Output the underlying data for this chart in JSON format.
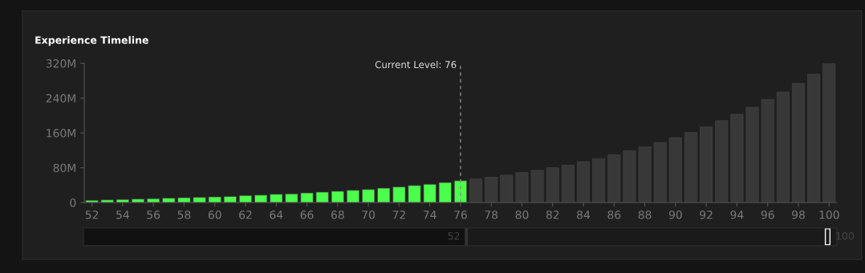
{
  "chart_data": {
    "type": "bar",
    "title": "Experience Timeline",
    "categories": [
      "52",
      null,
      "54",
      null,
      "56",
      null,
      "58",
      null,
      "60",
      null,
      "62",
      null,
      "64",
      null,
      "66",
      null,
      "68",
      null,
      "70",
      null,
      "72",
      null,
      "74",
      null,
      "76",
      null,
      "78",
      null,
      "80",
      null,
      "82",
      null,
      "84",
      null,
      "86",
      null,
      "88",
      null,
      "90",
      null,
      "92",
      null,
      "94",
      null,
      "96",
      null,
      "98",
      null,
      "100"
    ],
    "values": [
      5,
      6,
      7,
      8,
      9,
      10,
      11,
      12,
      13,
      14,
      16,
      17,
      19,
      20,
      22,
      24,
      26,
      28,
      30,
      33,
      36,
      39,
      42,
      46,
      50,
      54,
      58,
      63,
      69,
      74,
      80,
      86,
      94,
      101,
      110,
      119,
      128,
      138,
      149,
      161,
      174,
      188,
      203,
      219,
      237,
      254,
      274,
      295,
      319
    ],
    "colors": [
      "#4cff4c",
      "#4cff4c",
      "#4cff4c",
      "#4cff4c",
      "#4cff4c",
      "#4cff4c",
      "#4cff4c",
      "#4cff4c",
      "#4cff4c",
      "#4cff4c",
      "#4cff4c",
      "#4cff4c",
      "#4cff4c",
      "#4cff4c",
      "#4cff4c",
      "#4cff4c",
      "#4cff4c",
      "#4cff4c",
      "#4cff4c",
      "#4cff4c",
      "#4cff4c",
      "#4cff4c",
      "#4cff4c",
      "#4cff4c",
      "#4cff4c",
      "#383838",
      "#383838",
      "#383838",
      "#383838",
      "#383838",
      "#383838",
      "#383838",
      "#383838",
      "#383838",
      "#383838",
      "#383838",
      "#383838",
      "#383838",
      "#383838",
      "#383838",
      "#383838",
      "#383838",
      "#383838",
      "#383838",
      "#383838",
      "#383838",
      "#383838",
      "#383838",
      "#383838"
    ],
    "ylim": [
      0,
      320
    ],
    "yticks": [
      {
        "value": 0,
        "label": "0"
      },
      {
        "value": 80,
        "label": "80M"
      },
      {
        "value": 160,
        "label": "160M"
      },
      {
        "value": 240,
        "label": "240M"
      },
      {
        "value": 320,
        "label": "320M"
      }
    ],
    "ref_lines": [
      {
        "axis": "x",
        "value": "76",
        "label": "Current Level: 76",
        "color": "#8a8a8a",
        "line_style": "dashed"
      }
    ],
    "annotations": [
      "52",
      "100"
    ],
    "grid": false
  }
}
